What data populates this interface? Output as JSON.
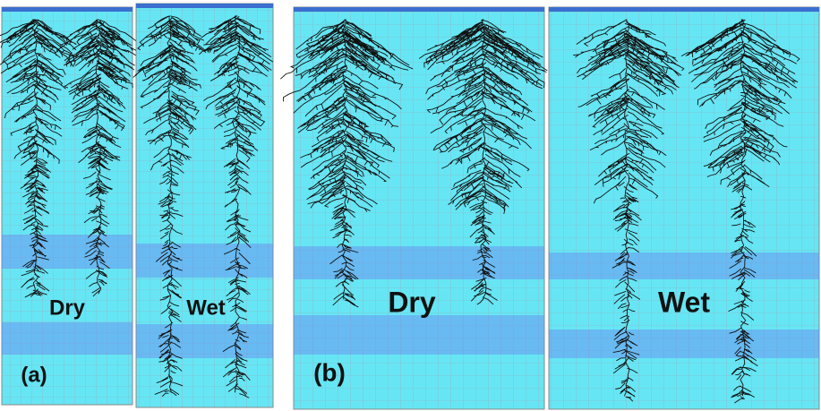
{
  "panel_a": {
    "tag": "(a)",
    "left_label": "Dry",
    "right_label": "Wet"
  },
  "panel_b": {
    "tag": "(b)",
    "left_label": "Dry",
    "right_label": "Wet"
  }
}
